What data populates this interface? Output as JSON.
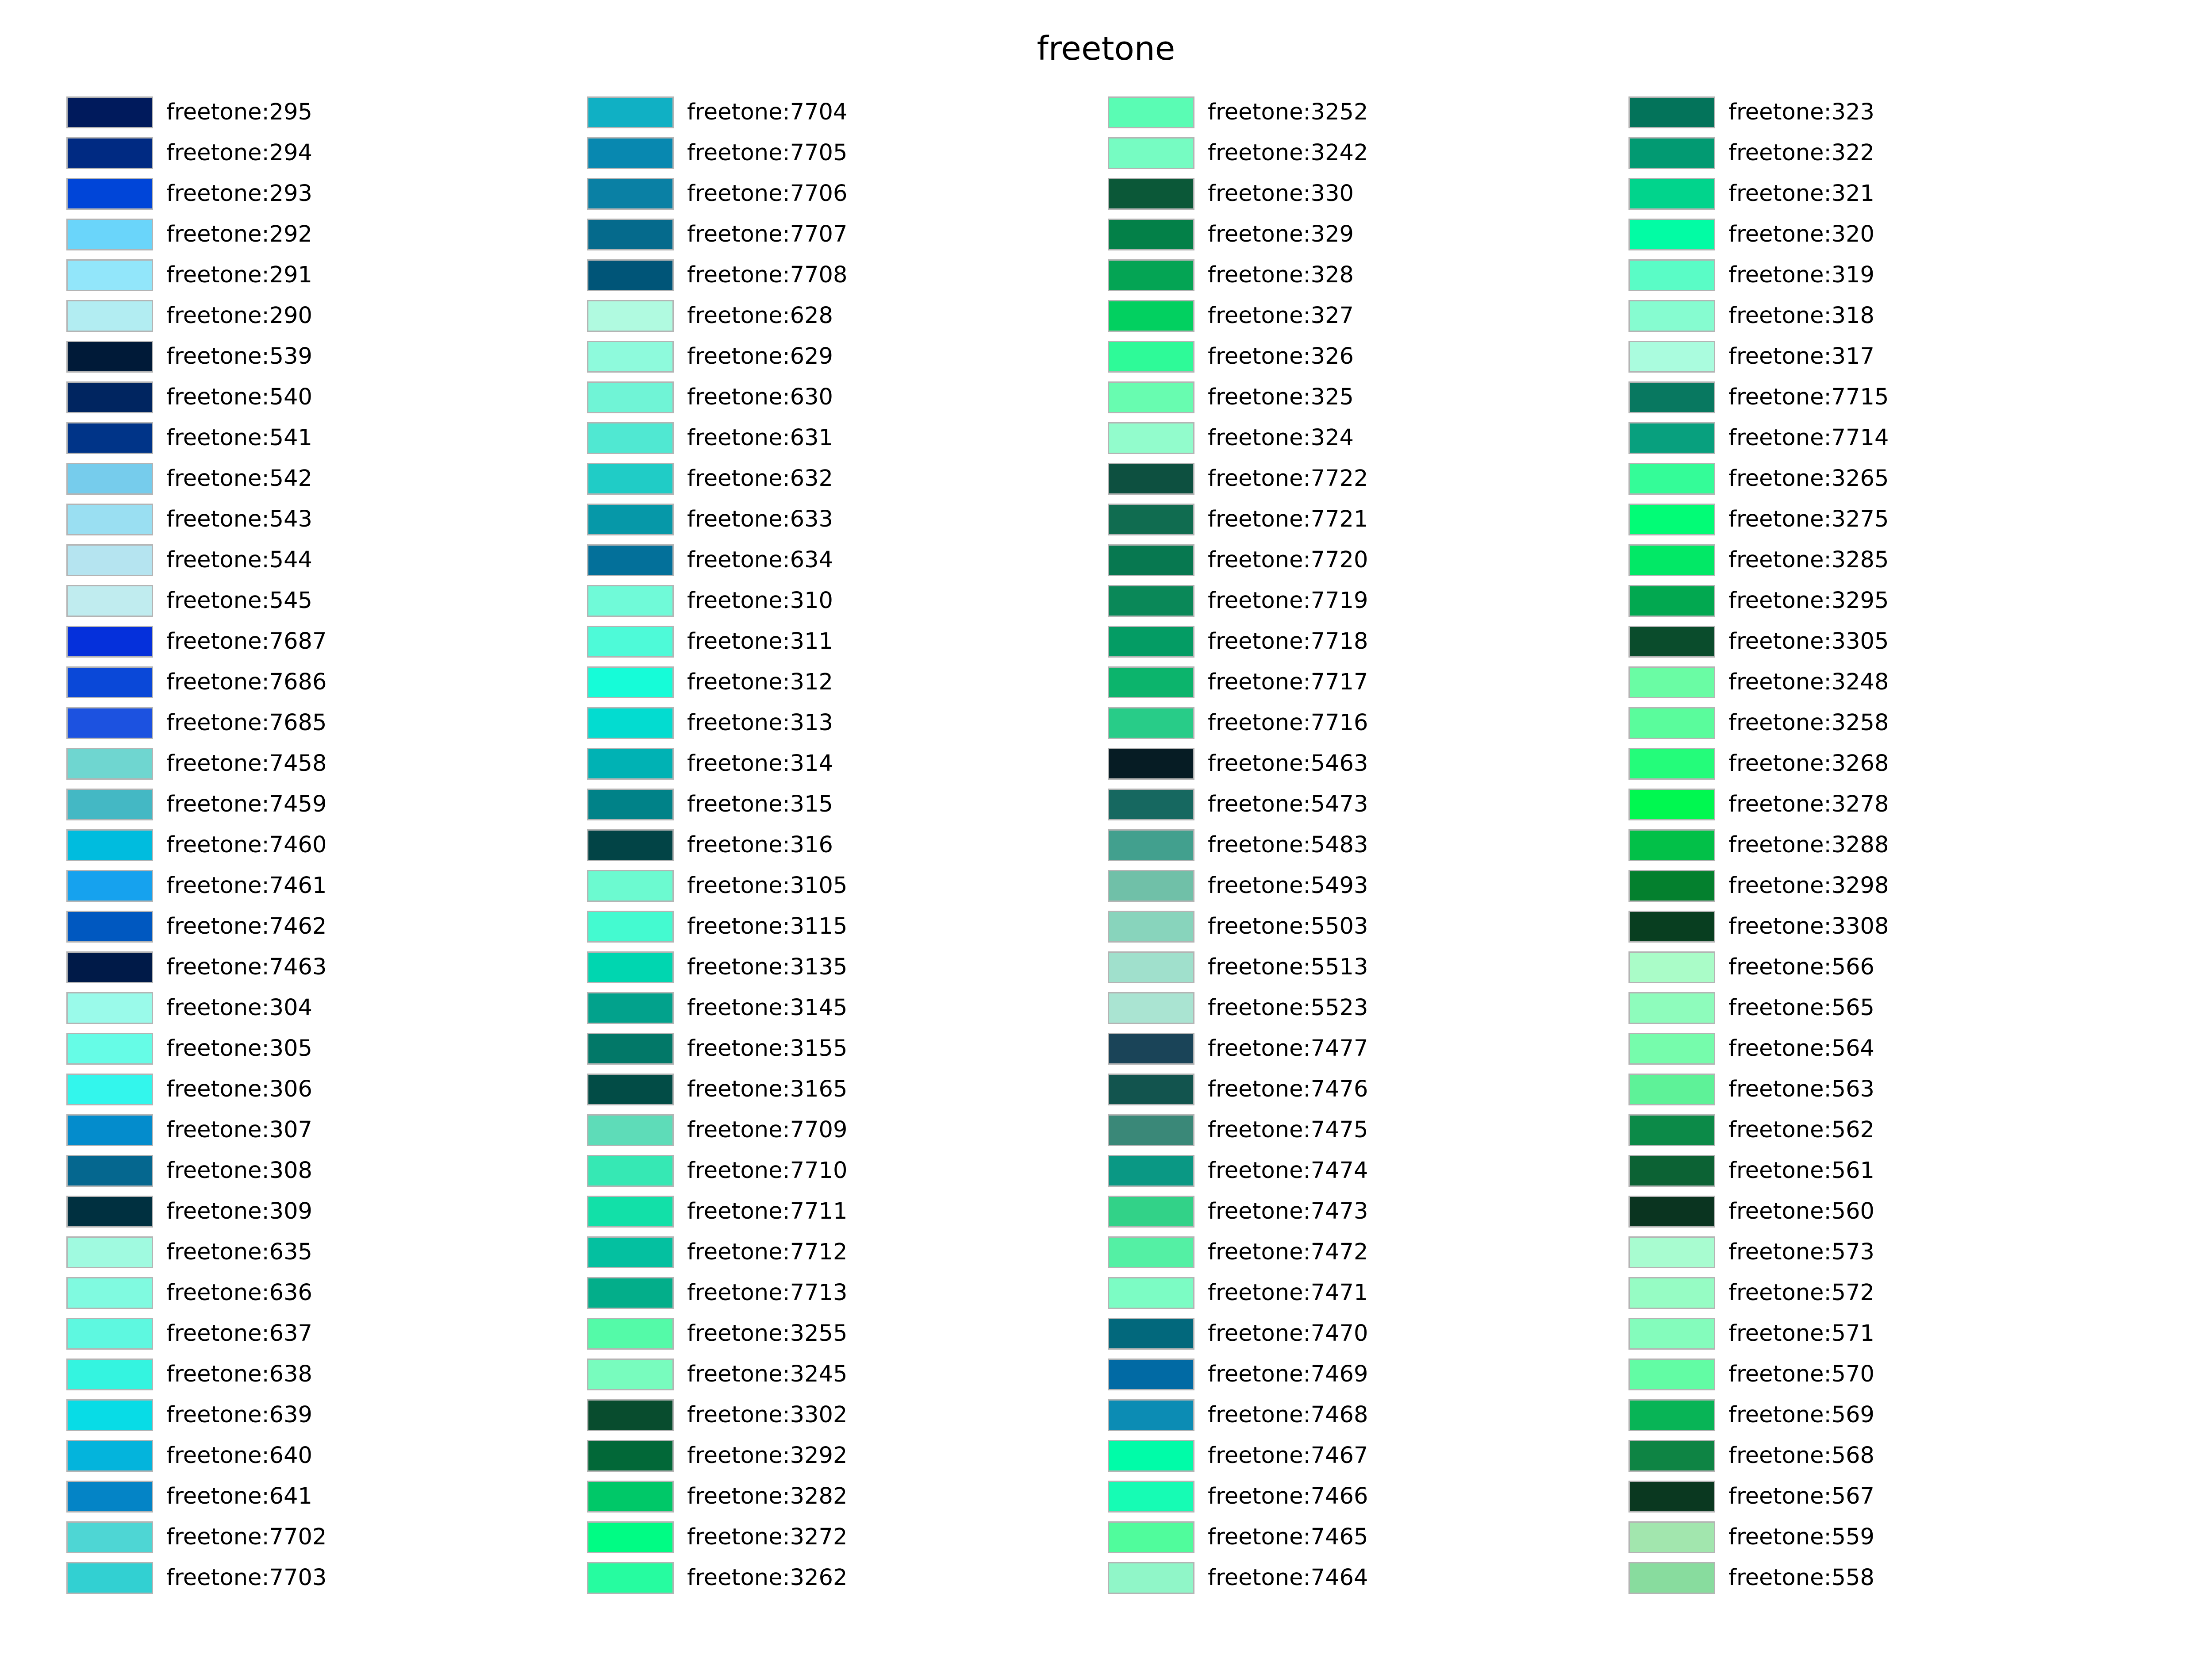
{
  "title": "freetone",
  "columns": [
    [
      {
        "label": "freetone:295",
        "color": "#001a5c"
      },
      {
        "label": "freetone:294",
        "color": "#002a82"
      },
      {
        "label": "freetone:293",
        "color": "#0045d8"
      },
      {
        "label": "freetone:292",
        "color": "#6ad5fa"
      },
      {
        "label": "freetone:291",
        "color": "#92e6fa"
      },
      {
        "label": "freetone:290",
        "color": "#b2edf2"
      },
      {
        "label": "freetone:539",
        "color": "#001a38"
      },
      {
        "label": "freetone:540",
        "color": "#002560"
      },
      {
        "label": "freetone:541",
        "color": "#003488"
      },
      {
        "label": "freetone:542",
        "color": "#76ccec"
      },
      {
        "label": "freetone:543",
        "color": "#9adff2"
      },
      {
        "label": "freetone:544",
        "color": "#b5e4f0"
      },
      {
        "label": "freetone:545",
        "color": "#c0ecef"
      },
      {
        "label": "freetone:7687",
        "color": "#0530db"
      },
      {
        "label": "freetone:7686",
        "color": "#0a48d8"
      },
      {
        "label": "freetone:7685",
        "color": "#1c52e0"
      },
      {
        "label": "freetone:7458",
        "color": "#6fd6d0"
      },
      {
        "label": "freetone:7459",
        "color": "#44b8c4"
      },
      {
        "label": "freetone:7460",
        "color": "#00bcde"
      },
      {
        "label": "freetone:7461",
        "color": "#16a2ee"
      },
      {
        "label": "freetone:7462",
        "color": "#0058c0"
      },
      {
        "label": "freetone:7463",
        "color": "#001a48"
      },
      {
        "label": "freetone:304",
        "color": "#9afaea"
      },
      {
        "label": "freetone:305",
        "color": "#66fce6"
      },
      {
        "label": "freetone:306",
        "color": "#33f6ec"
      },
      {
        "label": "freetone:307",
        "color": "#048ccc"
      },
      {
        "label": "freetone:308",
        "color": "#05678f"
      },
      {
        "label": "freetone:309",
        "color": "#003040"
      },
      {
        "label": "freetone:635",
        "color": "#a0fae0"
      },
      {
        "label": "freetone:636",
        "color": "#80fae0"
      },
      {
        "label": "freetone:637",
        "color": "#5ef8e0"
      },
      {
        "label": "freetone:638",
        "color": "#34f4e0"
      },
      {
        "label": "freetone:639",
        "color": "#08dce6"
      },
      {
        "label": "freetone:640",
        "color": "#04b4dc"
      },
      {
        "label": "freetone:641",
        "color": "#0484c6"
      },
      {
        "label": "freetone:7702",
        "color": "#4ed6d4"
      },
      {
        "label": "freetone:7703",
        "color": "#32d0d2"
      }
    ],
    [
      {
        "label": "freetone:7704",
        "color": "#10b0c4"
      },
      {
        "label": "freetone:7705",
        "color": "#0888b0"
      },
      {
        "label": "freetone:7706",
        "color": "#0a80a4"
      },
      {
        "label": "freetone:7707",
        "color": "#056a8c"
      },
      {
        "label": "freetone:7708",
        "color": "#005578"
      },
      {
        "label": "freetone:628",
        "color": "#b0fae0"
      },
      {
        "label": "freetone:629",
        "color": "#8efadc"
      },
      {
        "label": "freetone:630",
        "color": "#70f4d6"
      },
      {
        "label": "freetone:631",
        "color": "#50e8d2"
      },
      {
        "label": "freetone:632",
        "color": "#20ccc6"
      },
      {
        "label": "freetone:633",
        "color": "#0698a8"
      },
      {
        "label": "freetone:634",
        "color": "#03709a"
      },
      {
        "label": "freetone:310",
        "color": "#70fad8"
      },
      {
        "label": "freetone:311",
        "color": "#4efad8"
      },
      {
        "label": "freetone:312",
        "color": "#16fcd8"
      },
      {
        "label": "freetone:313",
        "color": "#03dcd0"
      },
      {
        "label": "freetone:314",
        "color": "#00b2b4"
      },
      {
        "label": "freetone:315",
        "color": "#008288"
      },
      {
        "label": "freetone:316",
        "color": "#024446"
      },
      {
        "label": "freetone:3105",
        "color": "#6cfad0"
      },
      {
        "label": "freetone:3115",
        "color": "#44fad0"
      },
      {
        "label": "freetone:3135",
        "color": "#00d6b0"
      },
      {
        "label": "freetone:3145",
        "color": "#02a28c"
      },
      {
        "label": "freetone:3155",
        "color": "#027868"
      },
      {
        "label": "freetone:3165",
        "color": "#024c46"
      },
      {
        "label": "freetone:7709",
        "color": "#5edcb8"
      },
      {
        "label": "freetone:7710",
        "color": "#36e8b4"
      },
      {
        "label": "freetone:7711",
        "color": "#12e0a8"
      },
      {
        "label": "freetone:7712",
        "color": "#04c0a0"
      },
      {
        "label": "freetone:7713",
        "color": "#03ae8a"
      },
      {
        "label": "freetone:3255",
        "color": "#54faa8"
      },
      {
        "label": "freetone:3245",
        "color": "#78fcbe"
      },
      {
        "label": "freetone:3302",
        "color": "#084c2e"
      },
      {
        "label": "freetone:3292",
        "color": "#026838"
      },
      {
        "label": "freetone:3282",
        "color": "#00c868"
      },
      {
        "label": "freetone:3272",
        "color": "#00fc84"
      },
      {
        "label": "freetone:3262",
        "color": "#26fca0"
      }
    ],
    [
      {
        "label": "freetone:3252",
        "color": "#5afcb4"
      },
      {
        "label": "freetone:3242",
        "color": "#76fcc2"
      },
      {
        "label": "freetone:330",
        "color": "#0b5838"
      },
      {
        "label": "freetone:329",
        "color": "#038048"
      },
      {
        "label": "freetone:328",
        "color": "#04a454"
      },
      {
        "label": "freetone:327",
        "color": "#02d060"
      },
      {
        "label": "freetone:326",
        "color": "#2efa98"
      },
      {
        "label": "freetone:325",
        "color": "#68fcb0"
      },
      {
        "label": "freetone:324",
        "color": "#92fccc"
      },
      {
        "label": "freetone:7722",
        "color": "#0d5040"
      },
      {
        "label": "freetone:7721",
        "color": "#106c50"
      },
      {
        "label": "freetone:7720",
        "color": "#077850"
      },
      {
        "label": "freetone:7719",
        "color": "#0a8858"
      },
      {
        "label": "freetone:7718",
        "color": "#049c64"
      },
      {
        "label": "freetone:7717",
        "color": "#0cb46c"
      },
      {
        "label": "freetone:7716",
        "color": "#28cc88"
      },
      {
        "label": "freetone:5463",
        "color": "#061c24"
      },
      {
        "label": "freetone:5473",
        "color": "#166860"
      },
      {
        "label": "freetone:5483",
        "color": "#42a08e"
      },
      {
        "label": "freetone:5493",
        "color": "#70c0a8"
      },
      {
        "label": "freetone:5503",
        "color": "#88d4bc"
      },
      {
        "label": "freetone:5513",
        "color": "#a0e0cc"
      },
      {
        "label": "freetone:5523",
        "color": "#aae4d2"
      },
      {
        "label": "freetone:7477",
        "color": "#1a4458"
      },
      {
        "label": "freetone:7476",
        "color": "#12544e"
      },
      {
        "label": "freetone:7475",
        "color": "#3a8878"
      },
      {
        "label": "freetone:7474",
        "color": "#0a9884"
      },
      {
        "label": "freetone:7473",
        "color": "#32d288"
      },
      {
        "label": "freetone:7472",
        "color": "#54f0a4"
      },
      {
        "label": "freetone:7471",
        "color": "#7cfcc4"
      },
      {
        "label": "freetone:7470",
        "color": "#02687c"
      },
      {
        "label": "freetone:7469",
        "color": "#016aa4"
      },
      {
        "label": "freetone:7468",
        "color": "#0c8cb4"
      },
      {
        "label": "freetone:7467",
        "color": "#00fca8"
      },
      {
        "label": "freetone:7466",
        "color": "#16fcb4"
      },
      {
        "label": "freetone:7465",
        "color": "#50fc9c"
      },
      {
        "label": "freetone:7464",
        "color": "#90f6c8"
      }
    ],
    [
      {
        "label": "freetone:323",
        "color": "#03735a"
      },
      {
        "label": "freetone:322",
        "color": "#029a72"
      },
      {
        "label": "freetone:321",
        "color": "#01d48c"
      },
      {
        "label": "freetone:320",
        "color": "#02fca4"
      },
      {
        "label": "freetone:319",
        "color": "#5afcc6"
      },
      {
        "label": "freetone:318",
        "color": "#86fcd0"
      },
      {
        "label": "freetone:317",
        "color": "#aafcde"
      },
      {
        "label": "freetone:7715",
        "color": "#087860"
      },
      {
        "label": "freetone:7714",
        "color": "#08a07e"
      },
      {
        "label": "freetone:3265",
        "color": "#34fc98"
      },
      {
        "label": "freetone:3275",
        "color": "#02fc76"
      },
      {
        "label": "freetone:3285",
        "color": "#02e866"
      },
      {
        "label": "freetone:3295",
        "color": "#02a850"
      },
      {
        "label": "freetone:3305",
        "color": "#0a4c2c"
      },
      {
        "label": "freetone:3248",
        "color": "#6afca4"
      },
      {
        "label": "freetone:3258",
        "color": "#5afc9c"
      },
      {
        "label": "freetone:3268",
        "color": "#24fc7a"
      },
      {
        "label": "freetone:3278",
        "color": "#00f850"
      },
      {
        "label": "freetone:3288",
        "color": "#02c048"
      },
      {
        "label": "freetone:3298",
        "color": "#04802e"
      },
      {
        "label": "freetone:3308",
        "color": "#083e20"
      },
      {
        "label": "freetone:566",
        "color": "#aafcc8"
      },
      {
        "label": "freetone:565",
        "color": "#8efcbc"
      },
      {
        "label": "freetone:564",
        "color": "#76fcac"
      },
      {
        "label": "freetone:563",
        "color": "#5ef298"
      },
      {
        "label": "freetone:562",
        "color": "#0c8a48"
      },
      {
        "label": "freetone:561",
        "color": "#0c6234"
      },
      {
        "label": "freetone:560",
        "color": "#0a3420"
      },
      {
        "label": "freetone:573",
        "color": "#a8fcd0"
      },
      {
        "label": "freetone:572",
        "color": "#96fcc4"
      },
      {
        "label": "freetone:571",
        "color": "#84fcbc"
      },
      {
        "label": "freetone:570",
        "color": "#62fca4"
      },
      {
        "label": "freetone:569",
        "color": "#08b456"
      },
      {
        "label": "freetone:568",
        "color": "#0e8444"
      },
      {
        "label": "freetone:567",
        "color": "#0a3820"
      },
      {
        "label": "freetone:559",
        "color": "#a2e6ae"
      },
      {
        "label": "freetone:558",
        "color": "#88dc9e"
      }
    ]
  ]
}
